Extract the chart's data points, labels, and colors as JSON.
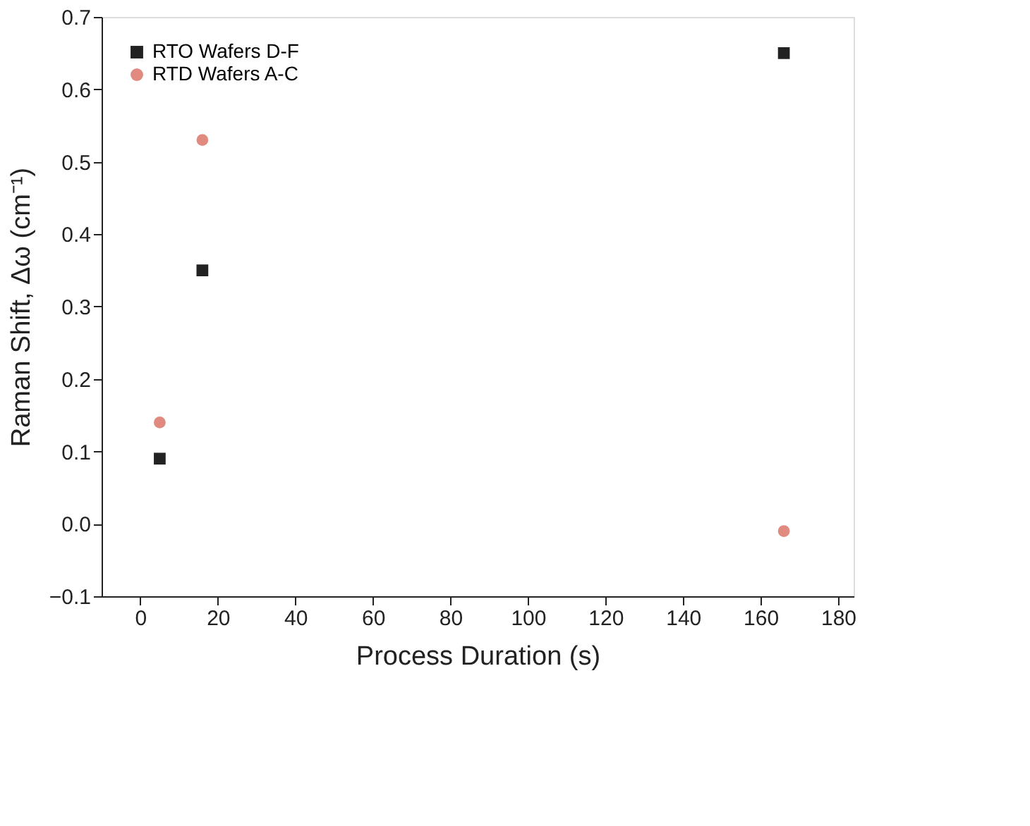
{
  "chart_data": {
    "type": "scatter",
    "xlabel": "Process Duration (s)",
    "ylabel": "Raman Shift, Δω (cm⁻¹)",
    "xlim": [
      -10,
      184
    ],
    "xticks": [
      0,
      20,
      40,
      60,
      80,
      100,
      120,
      140,
      160,
      180
    ],
    "ylim": [
      -0.1,
      0.7
    ],
    "yticks": [
      -0.1,
      {
        "value": 0,
        "label": "0.0"
      },
      0.1,
      0.2,
      0.3,
      0.4,
      0.5,
      0.6,
      0.7
    ],
    "grid": false,
    "legend": "top left",
    "series": [
      {
        "name": "RTO Wafers D-F",
        "color": "#222222",
        "marker": "square",
        "x": [
          5,
          16,
          166
        ],
        "values": [
          0.09,
          0.35,
          0.65
        ]
      },
      {
        "name": "RTD Wafers A-C",
        "color": "#e08a80",
        "marker": "circle",
        "x": [
          5,
          16,
          166
        ],
        "values": [
          0.14,
          0.53,
          -0.01
        ]
      }
    ]
  }
}
